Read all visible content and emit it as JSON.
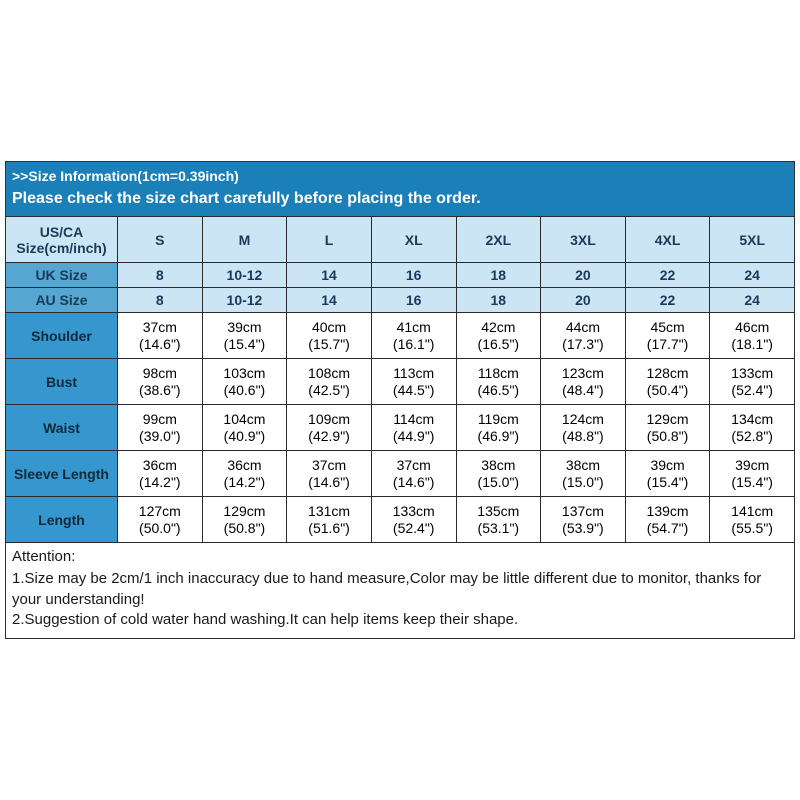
{
  "banner": {
    "title": ">>Size Information(1cm=0.39inch)",
    "subtitle": "Please check the size chart carefully before placing the order."
  },
  "columns": {
    "label": "US/CA Size(cm/inch)",
    "sizes": [
      "S",
      "M",
      "L",
      "XL",
      "2XL",
      "3XL",
      "4XL",
      "5XL"
    ]
  },
  "simpleRows": [
    {
      "label": "UK Size",
      "values": [
        "8",
        "10-12",
        "14",
        "16",
        "18",
        "20",
        "22",
        "24"
      ]
    },
    {
      "label": "AU Size",
      "values": [
        "8",
        "10-12",
        "14",
        "16",
        "18",
        "20",
        "22",
        "24"
      ]
    }
  ],
  "measureRows": [
    {
      "label": "Shoulder",
      "cm": [
        "37cm",
        "39cm",
        "40cm",
        "41cm",
        "42cm",
        "44cm",
        "45cm",
        "46cm"
      ],
      "in": [
        "(14.6\")",
        "(15.4\")",
        "(15.7\")",
        "(16.1\")",
        "(16.5\")",
        "(17.3\")",
        "(17.7\")",
        "(18.1\")"
      ]
    },
    {
      "label": "Bust",
      "cm": [
        "98cm",
        "103cm",
        "108cm",
        "113cm",
        "118cm",
        "123cm",
        "128cm",
        "133cm"
      ],
      "in": [
        "(38.6\")",
        "(40.6\")",
        "(42.5\")",
        "(44.5\")",
        "(46.5\")",
        "(48.4\")",
        "(50.4\")",
        "(52.4\")"
      ]
    },
    {
      "label": "Waist",
      "cm": [
        "99cm",
        "104cm",
        "109cm",
        "114cm",
        "119cm",
        "124cm",
        "129cm",
        "134cm"
      ],
      "in": [
        "(39.0\")",
        "(40.9\")",
        "(42.9\")",
        "(44.9\")",
        "(46.9\")",
        "(48.8\")",
        "(50.8\")",
        "(52.8\")"
      ]
    },
    {
      "label": "Sleeve Length",
      "cm": [
        "36cm",
        "36cm",
        "37cm",
        "37cm",
        "38cm",
        "38cm",
        "39cm",
        "39cm"
      ],
      "in": [
        "(14.2\")",
        "(14.2\")",
        "(14.6\")",
        "(14.6\")",
        "(15.0\")",
        "(15.0\")",
        "(15.4\")",
        "(15.4\")"
      ]
    },
    {
      "label": "Length",
      "cm": [
        "127cm",
        "129cm",
        "131cm",
        "133cm",
        "135cm",
        "137cm",
        "139cm",
        "141cm"
      ],
      "in": [
        "(50.0\")",
        "(50.8\")",
        "(51.6\")",
        "(52.4\")",
        "(53.1\")",
        "(53.9\")",
        "(54.7\")",
        "(55.5\")"
      ]
    }
  ],
  "attention": {
    "title": "Attention:",
    "line1": "1.Size may be 2cm/1 inch inaccuracy due to hand measure,Color may be little different due to monitor, thanks for your understanding!",
    "line2": "2.Suggestion of cold water hand washing.It can help items keep their shape."
  },
  "style": {
    "banner_bg": "#1b7fb8",
    "hdr_blue": "#cce5f4",
    "hdr_teal": "#55a6d0",
    "lbl_strong": "#3697ce",
    "border": "#2a2a2a"
  }
}
